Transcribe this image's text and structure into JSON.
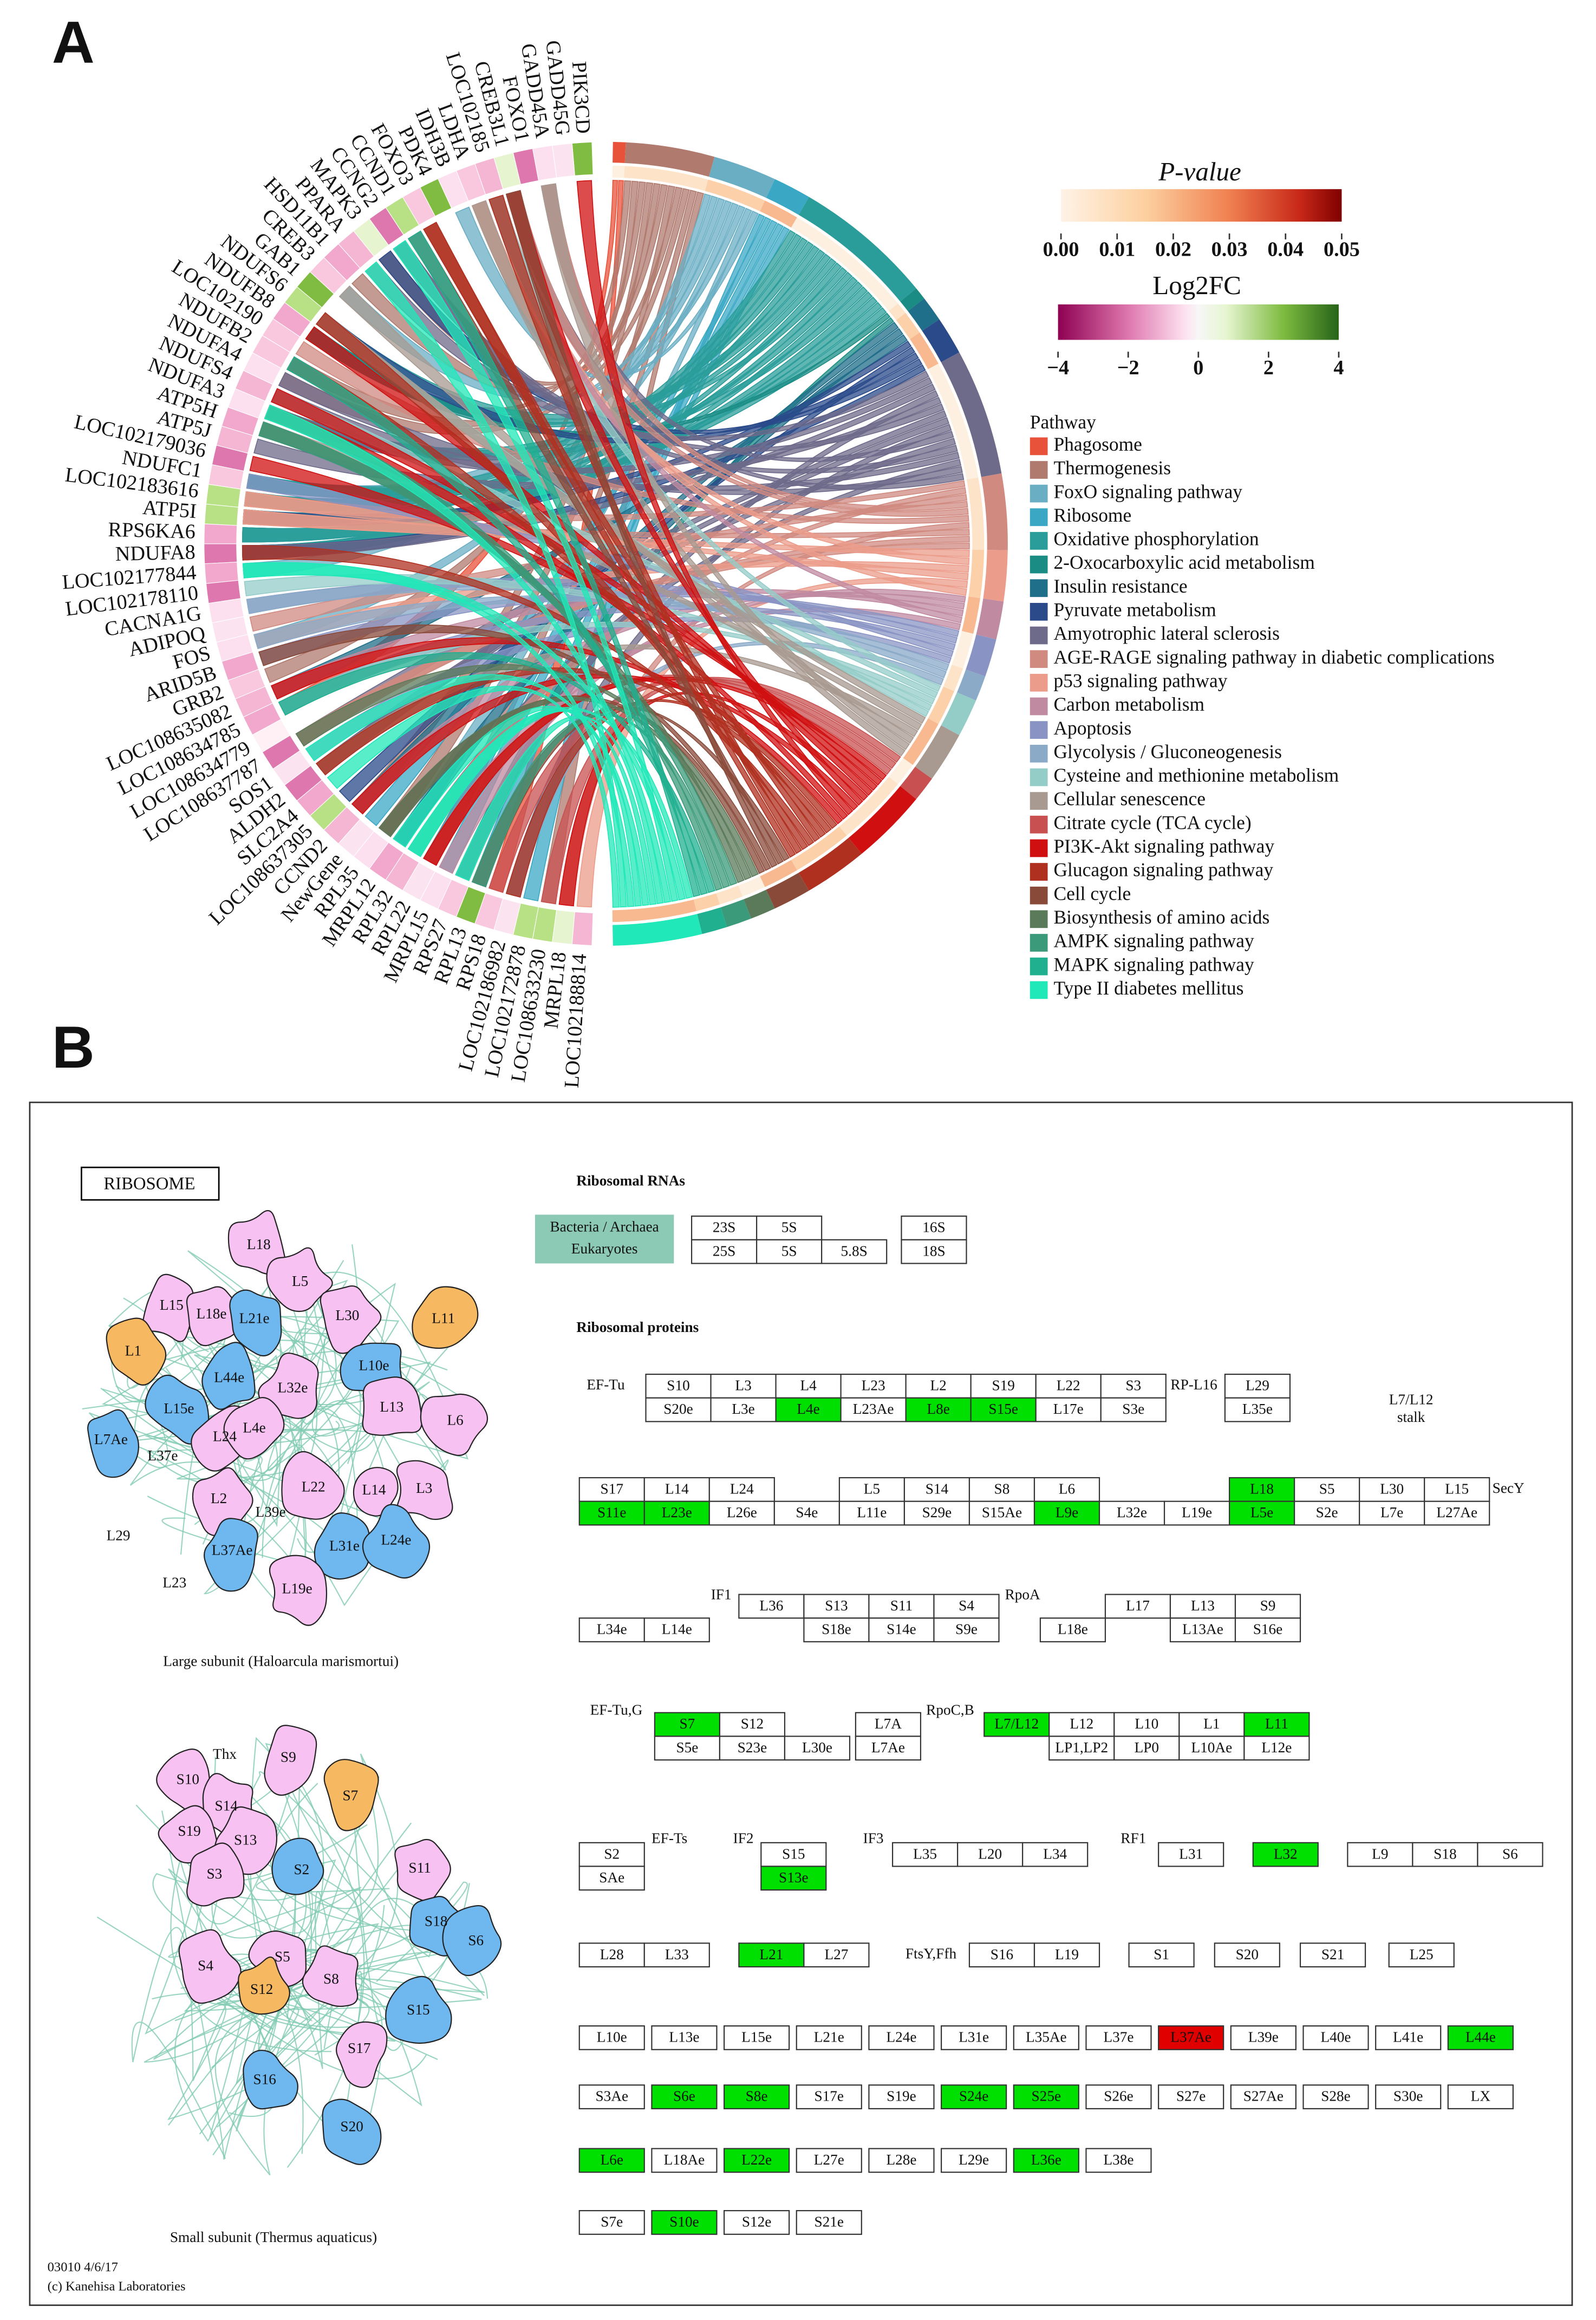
{
  "panel_a": {
    "letter": "A",
    "pvalue_legend": {
      "title": "P-value",
      "ticks": [
        {
          "value": 0,
          "label": "0.00"
        },
        {
          "value": 0.01,
          "label": "0.01"
        },
        {
          "value": 0.02,
          "label": "0.02"
        },
        {
          "value": 0.03,
          "label": "0.03"
        },
        {
          "value": 0.04,
          "label": "0.04"
        },
        {
          "value": 0.05,
          "label": "0.05"
        }
      ]
    },
    "log2fc_legend": {
      "title": "Log2FC",
      "ticks": [
        {
          "value": -4,
          "label": "−4"
        },
        {
          "value": -2,
          "label": "−2"
        },
        0,
        2,
        4
      ]
    },
    "pathway_legend": {
      "title": "Pathway",
      "items": [
        {
          "name": "Phagosome",
          "color": "#e8523a"
        },
        {
          "name": "Thermogenesis",
          "color": "#b07a6e"
        },
        {
          "name": "FoxO signaling pathway",
          "color": "#6aaec4"
        },
        {
          "name": "Ribosome",
          "color": "#3aa8c4"
        },
        {
          "name": "Oxidative phosphorylation",
          "color": "#2a9d9a"
        },
        {
          "name": "2-Oxocarboxylic acid metabolism",
          "color": "#1a8c84"
        },
        {
          "name": "Insulin resistance",
          "color": "#1f6e8a"
        },
        {
          "name": "Pyruvate metabolism",
          "color": "#2a4a8a"
        },
        {
          "name": "Amyotrophic lateral sclerosis",
          "color": "#6e6a8a"
        },
        {
          "name": "AGE-RAGE signaling pathway in diabetic complications",
          "color": "#d08a80"
        },
        {
          "name": "p53 signaling pathway",
          "color": "#ec9c8a"
        },
        {
          "name": "Carbon metabolism",
          "color": "#c08aa0"
        },
        {
          "name": "Apoptosis",
          "color": "#8a94c4"
        },
        {
          "name": "Glycolysis / Gluconeogenesis",
          "color": "#8aaac8"
        },
        {
          "name": "Cysteine and methionine metabolism",
          "color": "#94ccc8"
        },
        {
          "name": "Cellular senescence",
          "color": "#a89a90"
        },
        {
          "name": "Citrate cycle (TCA cycle)",
          "color": "#c85050"
        },
        {
          "name": "PI3K-Akt signaling pathway",
          "color": "#d01010"
        },
        {
          "name": "Glucagon signaling pathway",
          "color": "#b03020"
        },
        {
          "name": "Cell cycle",
          "color": "#8a4a3a"
        },
        {
          "name": "Biosynthesis of amino acids",
          "color": "#5a7a5a"
        },
        {
          "name": "AMPK signaling pathway",
          "color": "#3a9a7a"
        },
        {
          "name": "MAPK signaling pathway",
          "color": "#20b090"
        },
        {
          "name": "Type II diabetes mellitus",
          "color": "#20e8b8"
        }
      ]
    },
    "genes": [
      "PIK3CD",
      "GADD45G",
      "GADD45A",
      "FOXO1",
      "CREB3L1",
      "LOC102185",
      "LDHA",
      "IDH3B",
      "PDK4",
      "FOXO3",
      "CCND1",
      "CCNG2",
      "MAPK3",
      "PPARA",
      "HSD11B1",
      "CREB3",
      "GAB1",
      "NDUFS6",
      "NDUFB8",
      "LOC102190",
      "NDUFB2",
      "NDUFA4",
      "NDUFS4",
      "NDUFA3",
      "ATP5H",
      "ATP5J",
      "LOC102179036",
      "NDUFC1",
      "LOC102183616",
      "ATP5I",
      "RPS6KA6",
      "NDUFA8",
      "LOC102177844",
      "LOC102178110",
      "CACNA1G",
      "ADIPOQ",
      "FOS",
      "ARID5B",
      "GRB2",
      "LOC108635082",
      "LOC108634785",
      "LOC108634779",
      "LOC108637787",
      "SOS1",
      "ALDH2",
      "SLC2A4",
      "LOC108637305",
      "CCND2",
      "NewGene",
      "RPL35",
      "MRPL12",
      "RPL32",
      "RPL22",
      "MRPL15",
      "RPS27",
      "RPL13",
      "RPS18",
      "LOC102186982",
      "LOC102172878",
      "LOC108633230",
      "MRPL18",
      "LOC102188814"
    ]
  },
  "panel_b": {
    "letter": "B",
    "map_title": "RIBOSOME",
    "rrna_heading": "Ribosomal RNAs",
    "protein_heading": "Ribosomal proteins",
    "rrna_groups": [
      "Bacteria / Archaea",
      "Eukaryotes"
    ],
    "rrna_boxes": [
      "23S",
      "5S",
      "16S",
      "25S",
      "5S",
      "5.8S",
      "18S"
    ],
    "side_labels": [
      "EF-Tu",
      "RP-L16",
      "L7/L12",
      "stalk",
      "SecY",
      "IF1",
      "RpoA",
      "EF-Tu,G",
      "RpoC,B",
      "EF-Ts",
      "IF2",
      "IF3",
      "RF1",
      "FtsY,Ffh"
    ],
    "protein_rows": [
      {
        "top": [
          "S10",
          "L3",
          "L4",
          "L23",
          "L2",
          "S19",
          "L22",
          "S3",
          "L29"
        ],
        "bottom": [
          "S20e",
          "L3e",
          {
            "t": "L4e",
            "fill": "#00e000"
          },
          "L23Ae",
          {
            "t": "L8e",
            "fill": "#00e000"
          },
          {
            "t": "S15e",
            "fill": "#00e000"
          },
          "L17e",
          "S3e",
          "L35e"
        ]
      },
      {
        "top": [
          "S17",
          "L14",
          "L24",
          "L5",
          "S14",
          "S8",
          "L6",
          {
            "t": "L18",
            "fill": "#00e000"
          },
          "S5",
          "L30",
          "L15"
        ],
        "bottom": [
          {
            "t": "S11e",
            "fill": "#00e000"
          },
          {
            "t": "L23e",
            "fill": "#00e000"
          },
          "L26e",
          "S4e",
          "L11e",
          "S29e",
          "S15Ae",
          {
            "t": "L9e",
            "fill": "#00e000"
          },
          "L32e",
          "L19e",
          {
            "t": "L5e",
            "fill": "#00e000"
          },
          "S2e",
          "L7e",
          "L27Ae"
        ]
      },
      {
        "top": [
          "L36",
          "S13",
          "S11",
          "S4",
          "L17",
          "L13",
          "S9"
        ],
        "bottom": [
          "L34e",
          "L14e",
          "S18e",
          "S14e",
          "S9e",
          "L18e",
          "L13Ae",
          "S16e"
        ]
      },
      {
        "top": [
          {
            "t": "S7",
            "fill": "#00e000"
          },
          "S12",
          "L7A",
          {
            "t": "L7/L12",
            "fill": "#00e000"
          },
          "L12",
          "L10",
          "L1",
          {
            "t": "L11",
            "fill": "#00e000"
          }
        ],
        "bottom": [
          "S5e",
          "S23e",
          "L30e",
          "L7Ae",
          "LP1,LP2",
          "LP0",
          "L10Ae",
          "L12e"
        ]
      },
      {
        "top": [
          "S2",
          "S15",
          "L35",
          "L20",
          "L34",
          "L31",
          {
            "t": "L32",
            "fill": "#00e000"
          },
          "L9",
          "S18",
          "S6"
        ],
        "bottom": [
          "SAe",
          {
            "t": "S13e",
            "fill": "#00e000"
          }
        ]
      },
      {
        "top": [
          "L28",
          "L33",
          {
            "t": "L21",
            "fill": "#00e000"
          },
          "L27",
          "S16",
          "L19",
          "S1",
          "S20",
          "S21",
          "L25"
        ]
      },
      {
        "top": [
          "L10e",
          "L13e",
          "L15e",
          "L21e",
          "L24e",
          "L31e",
          "L35Ae",
          "L37e",
          {
            "t": "L37Ae",
            "fill": "#e00000"
          },
          "L39e",
          "L40e",
          "L41e",
          {
            "t": "L44e",
            "fill": "#00e000"
          }
        ]
      },
      {
        "top": [
          "S3Ae",
          {
            "t": "S6e",
            "fill": "#00e000"
          },
          {
            "t": "S8e",
            "fill": "#00e000"
          },
          "S17e",
          "S19e",
          {
            "t": "S24e",
            "fill": "#00e000"
          },
          {
            "t": "S25e",
            "fill": "#00e000"
          },
          "S26e",
          "S27e",
          "S27Ae",
          "S28e",
          "S30e",
          "LX"
        ]
      },
      {
        "top": [
          {
            "t": "L6e",
            "fill": "#00e000"
          },
          "L18Ae",
          {
            "t": "L22e",
            "fill": "#00e000"
          },
          "L27e",
          "L28e",
          "L29e",
          {
            "t": "L36e",
            "fill": "#00e000"
          },
          "L38e"
        ]
      },
      {
        "top": [
          "S7e",
          {
            "t": "S10e",
            "fill": "#00e000"
          },
          "S12e",
          "S21e"
        ]
      }
    ],
    "large_subunit": {
      "caption": "Large subunit (Haloarcula marismortui)",
      "labels": [
        "L18",
        "L5",
        "L15",
        "L18e",
        "L21e",
        "L30",
        "L11",
        "L1",
        "L44e",
        "L10e",
        "L32e",
        "L15e",
        "L13",
        "L6",
        "L7Ae",
        "L37e",
        "L24",
        "L4e",
        "L22",
        "L14",
        "L3",
        "L2",
        "L39e",
        "L29",
        "L37Ae",
        "L31e",
        "L24e",
        "L23",
        "L19e"
      ]
    },
    "small_subunit": {
      "caption": "Small subunit (Thermus aquaticus)",
      "labels": [
        "Thx",
        "S9",
        "S10",
        "S14",
        "S7",
        "S19",
        "S13",
        "S3",
        "S2",
        "S11",
        "S18",
        "S6",
        "S4",
        "S5",
        "S12",
        "S8",
        "S15",
        "S17",
        "S16",
        "S20"
      ]
    },
    "footer": [
      "03010 4/6/17",
      "(c) Kanehisa Laboratories"
    ]
  }
}
